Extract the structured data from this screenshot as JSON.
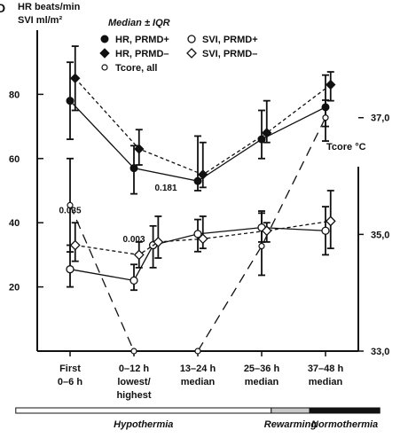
{
  "panel_letter": "D",
  "legend_title": "Median ± IQR",
  "chart_data": {
    "type": "line",
    "y_left_label_line1": "HR beats/min",
    "y_left_label_line2": "SVI ml/m²",
    "y_right_label": "Tcore °C",
    "y_left_range": [
      0,
      100
    ],
    "y_left_ticks": [
      "20",
      "40",
      "60",
      "80"
    ],
    "y_left_tick_values": [
      20,
      40,
      60,
      80
    ],
    "y_right_range": [
      33.0,
      38.5
    ],
    "y_right_ticks": [
      "33,0",
      "35,0",
      "37,0"
    ],
    "y_right_tick_values": [
      33.0,
      35.0,
      37.0
    ],
    "x_categories": [
      [
        "First",
        "0–6 h"
      ],
      [
        "0–12 h",
        "lowest/",
        "highest"
      ],
      [
        "13–24 h",
        "median"
      ],
      [
        "25–36 h",
        "median"
      ],
      [
        "37–48 h",
        "median"
      ]
    ],
    "phases": [
      {
        "label": "Hypothermia",
        "shade": "white",
        "from": -0.85,
        "to": 3.15
      },
      {
        "label": "Rewarming",
        "shade": "gray",
        "from": 3.15,
        "to": 3.75
      },
      {
        "label": "Normothermia",
        "shade": "black",
        "from": 3.75,
        "to": 4.85
      }
    ],
    "annotations": [
      {
        "text": "0.035",
        "x": 0.0,
        "y": 43
      },
      {
        "text": "0.003",
        "x": 1.0,
        "y": 34
      },
      {
        "text": "0.181",
        "x": 1.5,
        "y": 50
      }
    ],
    "series": [
      {
        "name": "HR, PRMD+",
        "axis": "left",
        "marker": "filled-circle",
        "dash": "solid",
        "x": [
          0,
          1,
          2,
          3,
          4
        ],
        "y": [
          78,
          57,
          53,
          66,
          76
        ],
        "lo": [
          66,
          49,
          50,
          60,
          70
        ],
        "hi": [
          90,
          64,
          67,
          75,
          86
        ]
      },
      {
        "name": "HR, PRMD–",
        "axis": "left",
        "marker": "filled-diamond",
        "dash": "dashed",
        "x": [
          0.08,
          1.08,
          2.08,
          3.08,
          4.08
        ],
        "y": [
          85,
          63,
          55,
          68,
          83
        ],
        "lo": [
          75,
          58,
          51,
          65,
          78
        ],
        "hi": [
          95,
          69,
          65,
          78,
          87
        ]
      },
      {
        "name": "Tcore, all",
        "axis": "right",
        "marker": "small-open-circle",
        "dash": "long-dashed",
        "x": [
          0,
          1,
          2,
          3,
          4
        ],
        "y": [
          35.5,
          33.0,
          33.0,
          34.8,
          37.0
        ],
        "lo": [
          34.7,
          33.0,
          33.0,
          34.3,
          36.6
        ],
        "hi": [
          36.3,
          33.0,
          33.0,
          35.4,
          37.3
        ]
      },
      {
        "name": "SVI, PRMD+",
        "axis": "left",
        "marker": "open-circle",
        "dash": "solid",
        "x": [
          0,
          1,
          1.3,
          2,
          3,
          4
        ],
        "y": [
          25.5,
          22,
          33,
          36.5,
          38.5,
          37.5
        ],
        "lo": [
          20,
          19,
          26,
          31,
          34,
          30
        ],
        "hi": [
          33,
          27,
          39,
          41,
          43,
          45
        ]
      },
      {
        "name": "SVI, PRMD–",
        "axis": "left",
        "marker": "open-diamond",
        "dash": "dashed",
        "x": [
          0.08,
          1.08,
          1.38,
          2.08,
          3.08,
          4.08
        ],
        "y": [
          33,
          30,
          34,
          35,
          37.5,
          40.5
        ],
        "lo": [
          28,
          26,
          29,
          32,
          34,
          32
        ],
        "hi": [
          40,
          34,
          42,
          42,
          40,
          50
        ]
      }
    ]
  }
}
